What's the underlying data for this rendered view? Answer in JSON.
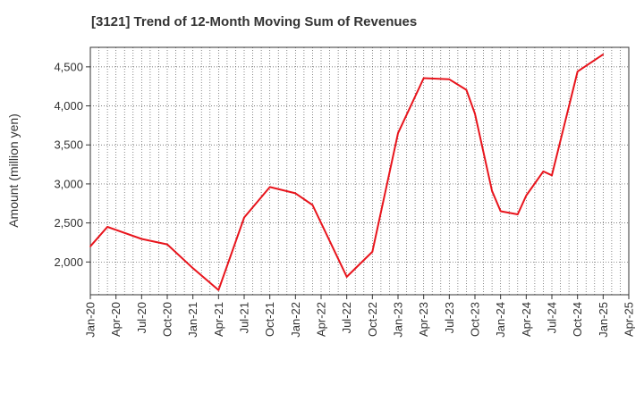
{
  "chart_data": {
    "type": "line",
    "title": "[3121]  Trend of 12-Month Moving Sum of Revenues",
    "ylabel": "Amount (million yen)",
    "xlabel": "",
    "ylim": [
      1580,
      4750
    ],
    "y_ticks": [
      2000,
      2500,
      3000,
      3500,
      4000,
      4500
    ],
    "y_tick_labels": [
      "2,000",
      "2,500",
      "3,000",
      "3,500",
      "4,000",
      "4,500"
    ],
    "x_range": [
      "2020-01",
      "2025-04"
    ],
    "x_tick_labels": [
      "Jan-20",
      "Apr-20",
      "Jul-20",
      "Oct-20",
      "Jan-21",
      "Apr-21",
      "Jul-21",
      "Oct-21",
      "Jan-22",
      "Apr-22",
      "Jul-22",
      "Oct-22",
      "Jan-23",
      "Apr-23",
      "Jul-23",
      "Oct-23",
      "Jan-24",
      "Apr-24",
      "Jul-24",
      "Oct-24",
      "Jan-25",
      "Apr-25"
    ],
    "grid": true,
    "series": [
      {
        "color": "#e8141c",
        "points": [
          {
            "x": "2020-01",
            "y": 2200
          },
          {
            "x": "2020-03",
            "y": 2450
          },
          {
            "x": "2020-07",
            "y": 2295
          },
          {
            "x": "2020-10",
            "y": 2225
          },
          {
            "x": "2021-01",
            "y": 1920
          },
          {
            "x": "2021-04",
            "y": 1640
          },
          {
            "x": "2021-07",
            "y": 2570
          },
          {
            "x": "2021-10",
            "y": 2960
          },
          {
            "x": "2022-01",
            "y": 2880
          },
          {
            "x": "2022-03",
            "y": 2730
          },
          {
            "x": "2022-07",
            "y": 1810
          },
          {
            "x": "2022-10",
            "y": 2130
          },
          {
            "x": "2023-01",
            "y": 3650
          },
          {
            "x": "2023-04",
            "y": 4355
          },
          {
            "x": "2023-07",
            "y": 4340
          },
          {
            "x": "2023-09",
            "y": 4205
          },
          {
            "x": "2023-10",
            "y": 3900
          },
          {
            "x": "2023-12",
            "y": 2910
          },
          {
            "x": "2024-01",
            "y": 2650
          },
          {
            "x": "2024-03",
            "y": 2610
          },
          {
            "x": "2024-04",
            "y": 2850
          },
          {
            "x": "2024-06",
            "y": 3160
          },
          {
            "x": "2024-07",
            "y": 3110
          },
          {
            "x": "2024-10",
            "y": 4440
          },
          {
            "x": "2025-01",
            "y": 4660
          }
        ]
      }
    ]
  }
}
